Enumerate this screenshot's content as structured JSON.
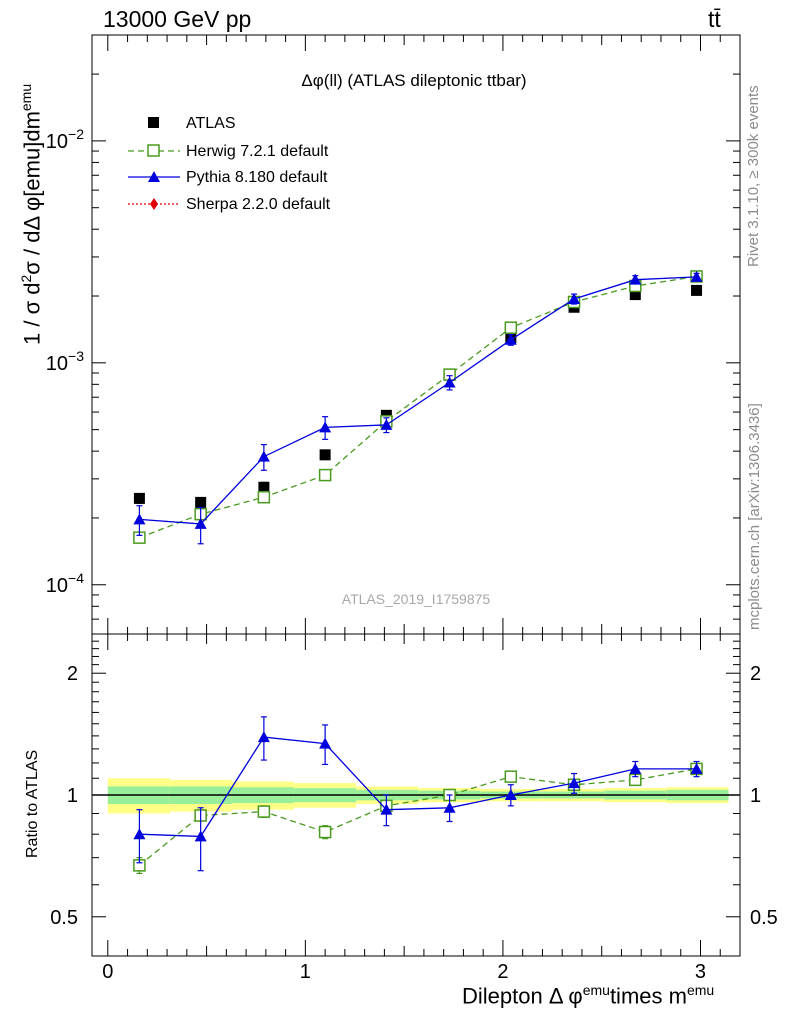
{
  "header": {
    "energy_label": "13000 GeV pp",
    "process_label": "tt̄"
  },
  "side": {
    "rivet_label": "Rivet 3.1.10, ≥ 300k events",
    "mcplots_label": "mcplots.cern.ch [arXiv:1306.3436]"
  },
  "chart_data": [
    {
      "type": "scatter",
      "panel": "main",
      "title": "Δφ(ll) (ATLAS dileptonic ttbar)",
      "analysis_id": "ATLAS_2019_I1759875",
      "ylabel_parts": [
        "1 / σ  d",
        "2",
        "σ / dΔ φ[emu]dm",
        "emu"
      ],
      "y_scale": "log",
      "ylim": [
        6e-05,
        0.03
      ],
      "xlim": [
        -0.08,
        3.2
      ],
      "y_ticks": [
        {
          "value": 0.0001,
          "base": "10",
          "exp": "−4"
        },
        {
          "value": 0.001,
          "base": "10",
          "exp": "−3"
        },
        {
          "value": 0.01,
          "base": "10",
          "exp": "−2"
        }
      ],
      "legend": [
        "ATLAS",
        "Herwig 7.2.1 default",
        "Pythia 8.180 default",
        "Sherpa 2.2.0 default"
      ],
      "legend_position": "top-left",
      "x": [
        0.16,
        0.47,
        0.79,
        1.1,
        1.41,
        1.73,
        2.04,
        2.36,
        2.67,
        2.98
      ],
      "series": [
        {
          "name": "ATLAS",
          "color": "#000000",
          "marker": "filled-square",
          "values": [
            0.000245,
            0.000235,
            0.000275,
            0.000385,
            0.00058,
            0.00088,
            0.0013,
            0.00178,
            0.00203,
            0.00212
          ],
          "error": [
            1.2e-05,
            1.2e-05,
            1.4e-05,
            1.8e-05,
            2.4e-05,
            3e-05,
            4e-05,
            5e-05,
            6e-05,
            6e-05
          ]
        },
        {
          "name": "Herwig 7.2.1 default",
          "color": "#4a9a1f",
          "marker": "open-square",
          "dash": "6,4",
          "values": [
            0.000163,
            0.000208,
            0.000248,
            0.000312,
            0.000545,
            0.000885,
            0.00144,
            0.00188,
            0.00222,
            0.00245
          ],
          "error": [
            8e-06,
            8e-06,
            9e-06,
            1.2e-05,
            1.5e-05,
            2e-05,
            3e-05,
            4e-05,
            4e-05,
            5e-05
          ]
        },
        {
          "name": "Pythia 8.180 default",
          "color": "#0000dd",
          "marker": "filled-triangle",
          "values": [
            0.000197,
            0.000188,
            0.000378,
            0.000512,
            0.000525,
            0.000815,
            0.00127,
            0.00194,
            0.00237,
            0.00244
          ],
          "error": [
            3e-05,
            3.5e-05,
            5e-05,
            6e-05,
            4e-05,
            6e-05,
            7e-05,
            0.0001,
            0.0001,
            9e-05
          ]
        },
        {
          "name": "Sherpa 2.2.0 default",
          "color": "#e00000",
          "marker": "filled-diamond",
          "dash": "2,2",
          "values": [],
          "error": []
        }
      ]
    },
    {
      "type": "scatter",
      "panel": "ratio",
      "ylabel": "Ratio to ATLAS",
      "xlabel_parts": [
        "Dilepton Δ φ",
        "emu",
        "times m",
        "emu"
      ],
      "y_scale": "log",
      "ylim": [
        0.4,
        2.5
      ],
      "xlim": [
        -0.08,
        3.2
      ],
      "x_ticks": [
        0,
        1,
        2,
        3
      ],
      "y_ticks": [
        0.5,
        1,
        2
      ],
      "reference_line": 1,
      "x": [
        0.16,
        0.47,
        0.79,
        1.1,
        1.41,
        1.73,
        2.04,
        2.36,
        2.67,
        2.98
      ],
      "x_edges": [
        0.0,
        0.314,
        0.628,
        0.942,
        1.257,
        1.571,
        1.885,
        2.199,
        2.513,
        2.827,
        3.142
      ],
      "bands": {
        "inner_color": "#99ee99",
        "outer_color": "#ffff88",
        "inner_halfwidth": [
          0.05,
          0.05,
          0.045,
          0.04,
          0.03,
          0.025,
          0.02,
          0.02,
          0.025,
          0.03
        ],
        "outer_halfwidth": [
          0.1,
          0.09,
          0.08,
          0.07,
          0.05,
          0.04,
          0.035,
          0.035,
          0.04,
          0.045
        ]
      },
      "series": [
        {
          "name": "Herwig 7.2.1 default",
          "color": "#4a9a1f",
          "marker": "open-square",
          "dash": "6,4",
          "values": [
            0.67,
            0.89,
            0.91,
            0.81,
            0.94,
            1.0,
            1.11,
            1.06,
            1.09,
            1.16
          ],
          "error": [
            0.03,
            0.02,
            0.03,
            0.03,
            0.02,
            0.02,
            0.02,
            0.02,
            0.02,
            0.02
          ]
        },
        {
          "name": "Pythia 8.180 default",
          "color": "#0000dd",
          "marker": "filled-triangle",
          "values": [
            0.8,
            0.79,
            1.39,
            1.34,
            0.92,
            0.93,
            1.0,
            1.07,
            1.16,
            1.16
          ],
          "error": [
            0.12,
            0.14,
            0.17,
            0.15,
            0.08,
            0.07,
            0.06,
            0.06,
            0.05,
            0.05
          ]
        }
      ]
    }
  ]
}
